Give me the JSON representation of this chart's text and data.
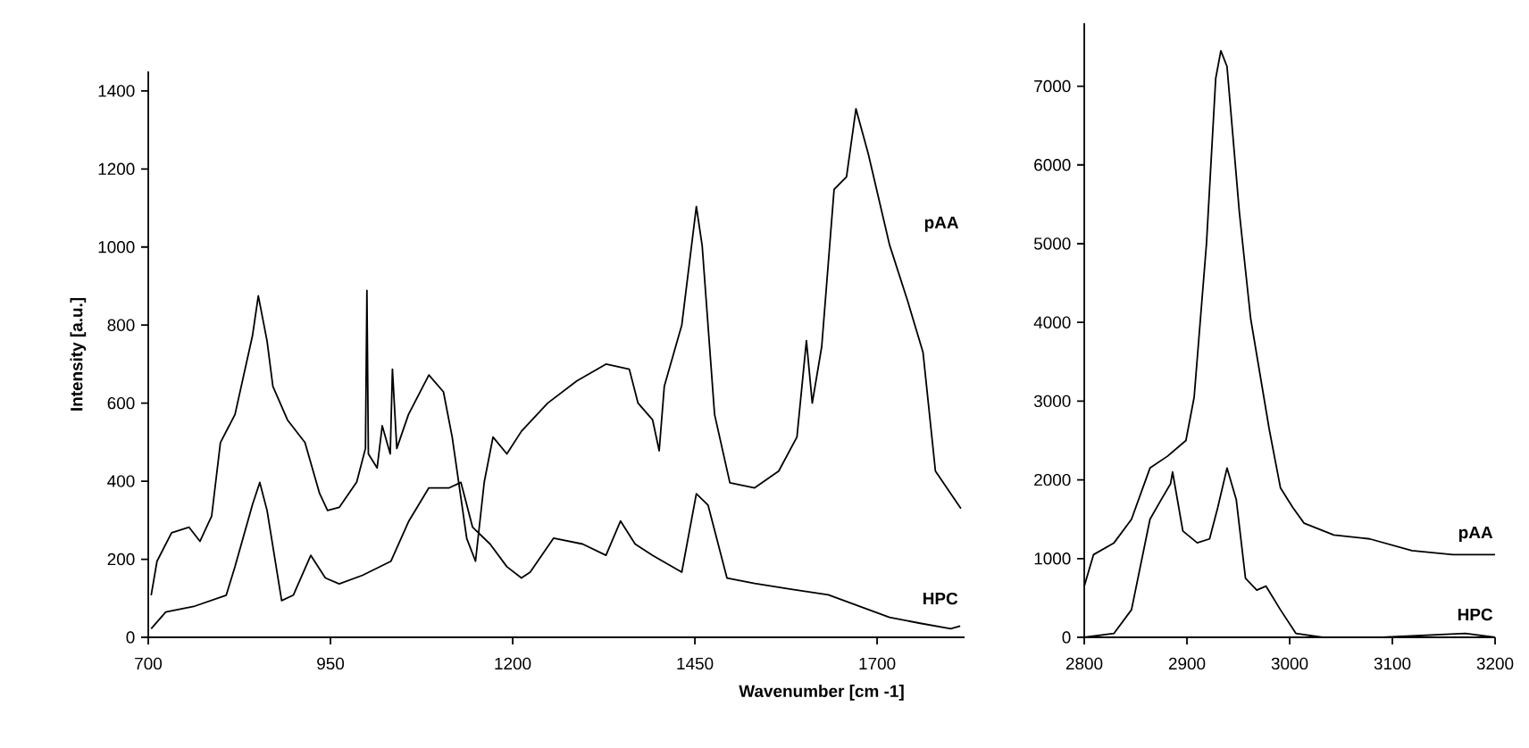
{
  "chart_data": [
    {
      "type": "line",
      "xlabel": "Wavenumber [cm -1]",
      "ylabel": "Intensity [a.u.]",
      "xlim": [
        700,
        1820
      ],
      "ylim": [
        0,
        1450
      ],
      "xticks": [
        700,
        950,
        1200,
        1450,
        1700
      ],
      "yticks": [
        0,
        200,
        400,
        600,
        800,
        1000,
        1200,
        1400
      ],
      "series": [
        {
          "name": "pAA",
          "color": "#000000",
          "x": [
            704,
            712,
            732,
            756,
            771,
            787,
            799,
            819,
            843,
            851,
            863,
            871,
            891,
            915,
            935,
            946,
            962,
            986,
            998,
            1000,
            1002,
            1014,
            1021,
            1032,
            1035,
            1041,
            1057,
            1085,
            1105,
            1117,
            1137,
            1149,
            1161,
            1173,
            1192,
            1212,
            1248,
            1288,
            1328,
            1360,
            1372,
            1392,
            1401,
            1408,
            1432,
            1452,
            1460,
            1477,
            1498,
            1532,
            1565,
            1590,
            1603,
            1611,
            1624,
            1641,
            1658,
            1671,
            1688,
            1717,
            1742,
            1763,
            1780,
            1801,
            1815
          ],
          "values": [
            108,
            195,
            268,
            282,
            246,
            311,
            499,
            571,
            773,
            875,
            759,
            643,
            557,
            499,
            369,
            325,
            333,
            398,
            484,
            889,
            470,
            434,
            542,
            470,
            687,
            484,
            571,
            672,
            629,
            513,
            253,
            195,
            398,
            513,
            470,
            528,
            600,
            657,
            700,
            687,
            600,
            557,
            478,
            643,
            800,
            1104,
            1003,
            571,
            396,
            383,
            426,
            513,
            760,
            600,
            745,
            1148,
            1180,
            1354,
            1238,
            1006,
            861,
            730,
            426,
            368,
            330
          ]
        },
        {
          "name": "HPC",
          "color": "#000000",
          "x": [
            704,
            724,
            764,
            807,
            819,
            843,
            853,
            863,
            883,
            899,
            923,
            943,
            962,
            994,
            1033,
            1057,
            1085,
            1113,
            1129,
            1145,
            1169,
            1192,
            1212,
            1224,
            1256,
            1296,
            1328,
            1348,
            1368,
            1392,
            1432,
            1452,
            1468,
            1494,
            1532,
            1582,
            1633,
            1675,
            1717,
            1759,
            1801,
            1814
          ],
          "values": [
            22,
            65,
            80,
            108,
            181,
            340,
            397,
            325,
            94,
            108,
            210,
            152,
            137,
            159,
            195,
            296,
            383,
            383,
            397,
            282,
            239,
            181,
            152,
            167,
            254,
            239,
            210,
            298,
            239,
            210,
            167,
            368,
            339,
            152,
            138,
            123,
            109,
            80,
            51,
            36,
            22,
            29
          ]
        }
      ]
    },
    {
      "type": "line",
      "xlim": [
        2800,
        3200
      ],
      "ylim": [
        0,
        7800
      ],
      "xticks": [
        2800,
        2900,
        3000,
        3100,
        3200
      ],
      "yticks": [
        0,
        1000,
        2000,
        3000,
        4000,
        5000,
        6000,
        7000
      ],
      "series": [
        {
          "name": "pAA",
          "color": "#000000",
          "x": [
            2800,
            2809,
            2829,
            2846,
            2864,
            2881,
            2899,
            2907,
            2919,
            2928,
            2933,
            2939,
            2951,
            2962,
            2980,
            2991,
            3003,
            3014,
            3043,
            3078,
            3119,
            3159,
            3200
          ],
          "values": [
            650,
            1050,
            1200,
            1500,
            2150,
            2300,
            2500,
            3050,
            5000,
            7100,
            7450,
            7250,
            5400,
            4050,
            2650,
            1900,
            1650,
            1450,
            1300,
            1250,
            1100,
            1050,
            1050
          ]
        },
        {
          "name": "HPC",
          "color": "#000000",
          "x": [
            2800,
            2829,
            2846,
            2864,
            2875,
            2884,
            2886,
            2896,
            2910,
            2922,
            2930,
            2939,
            2948,
            2957,
            2968,
            2977,
            2991,
            3006,
            3032,
            3090,
            3171,
            3200
          ],
          "values": [
            0,
            50,
            350,
            1500,
            1750,
            1950,
            2100,
            1350,
            1200,
            1250,
            1650,
            2150,
            1750,
            750,
            600,
            650,
            350,
            50,
            0,
            0,
            50,
            0
          ]
        }
      ]
    }
  ]
}
